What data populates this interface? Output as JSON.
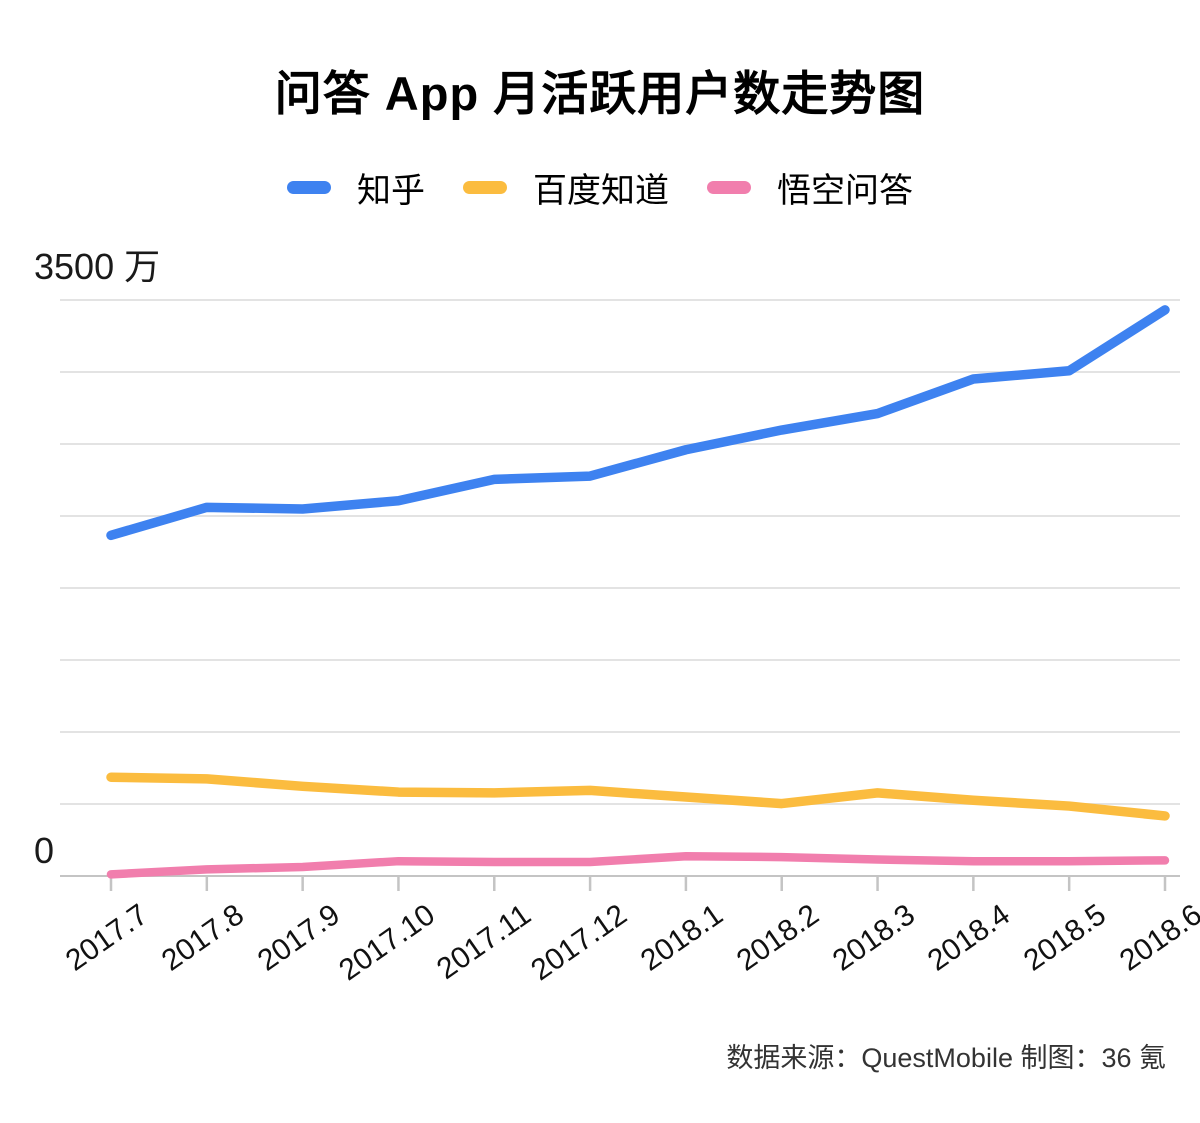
{
  "title": "问答 App 月活跃用户数走势图",
  "source_note": "数据来源：QuestMobile  制图：36 氪",
  "y_axis": {
    "max_label": "3500 万",
    "min_label": "0",
    "unit": "万"
  },
  "colors": {
    "gridline": "#E3E3E3",
    "axis": "#C4C4C4",
    "text": "#111111"
  },
  "chart_data": {
    "type": "line",
    "title": "问答 App 月活跃用户数走势图",
    "unit": "万",
    "x": [
      "2017.7",
      "2017.8",
      "2017.9",
      "2017.10",
      "2017.11",
      "2017.12",
      "2018.1",
      "2018.2",
      "2018.3",
      "2018.4",
      "2018.5",
      "2018.6"
    ],
    "series": [
      {
        "name": "知乎",
        "slug": "zhihu",
        "color": "#3E82F0",
        "values": [
          2070,
          2240,
          2230,
          2280,
          2410,
          2430,
          2590,
          2710,
          2810,
          3020,
          3070,
          3440
        ]
      },
      {
        "name": "百度知道",
        "slug": "baidu-zhidao",
        "color": "#FBBC3F",
        "values": [
          600,
          590,
          545,
          510,
          505,
          520,
          480,
          440,
          505,
          460,
          425,
          365
        ]
      },
      {
        "name": "悟空问答",
        "slug": "wukong-wenda",
        "color": "#F17EAD",
        "values": [
          10,
          40,
          55,
          90,
          85,
          85,
          120,
          115,
          100,
          90,
          90,
          95
        ]
      }
    ],
    "ylim": [
      0,
      3500
    ],
    "y_gridline_count": 9,
    "grid": true,
    "legend_position": "top"
  }
}
